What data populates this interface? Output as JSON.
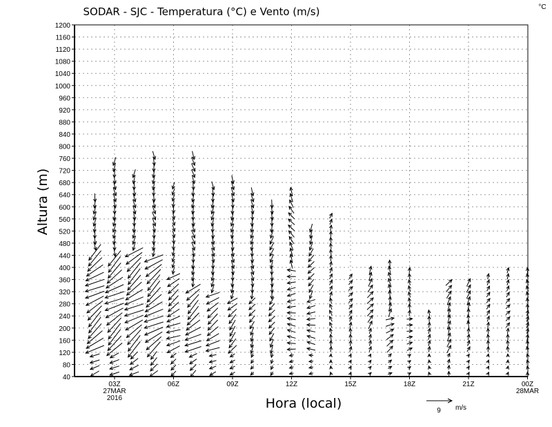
{
  "chart_data": {
    "type": "wind-vector-profile",
    "title": "SODAR - SJC - Temperatura (°C) e Vento (m/s)",
    "units_corner": "°C",
    "xlabel": "Hora (local)",
    "ylabel": "Altura (m)",
    "ylim": [
      40,
      1200
    ],
    "ystep": 40,
    "xlim_hours": [
      1,
      24
    ],
    "x_ticks": [
      {
        "hour": 3,
        "label": "03Z",
        "sub1": "27MAR",
        "sub2": "2016"
      },
      {
        "hour": 6,
        "label": "06Z"
      },
      {
        "hour": 9,
        "label": "09Z"
      },
      {
        "hour": 12,
        "label": "12Z"
      },
      {
        "hour": 15,
        "label": "15Z"
      },
      {
        "hour": 18,
        "label": "18Z"
      },
      {
        "hour": 21,
        "label": "21Z"
      },
      {
        "hour": 24,
        "label": "00Z",
        "sub1": "28MAR"
      }
    ],
    "reference_vector": {
      "speed": 9,
      "label": "9",
      "units": "m/s"
    },
    "level_step_m": 20,
    "profiles": [
      {
        "hour": 2,
        "top": 640,
        "low_dir": 215,
        "low_speed": 7,
        "high_dir": 270,
        "high_speed": 3,
        "transition": 460
      },
      {
        "hour": 3,
        "top": 750,
        "low_dir": 215,
        "low_speed": 7,
        "high_dir": 270,
        "high_speed": 3,
        "transition": 440
      },
      {
        "hour": 4,
        "top": 720,
        "low_dir": 215,
        "low_speed": 7,
        "high_dir": 270,
        "high_speed": 3,
        "transition": 460
      },
      {
        "hour": 5,
        "top": 780,
        "low_dir": 215,
        "low_speed": 7,
        "high_dir": 275,
        "high_speed": 3,
        "transition": 440
      },
      {
        "hour": 6,
        "top": 680,
        "low_dir": 210,
        "low_speed": 5,
        "high_dir": 270,
        "high_speed": 2.5,
        "transition": 380
      },
      {
        "hour": 7,
        "top": 780,
        "low_dir": 215,
        "low_speed": 6,
        "high_dir": 275,
        "high_speed": 3,
        "transition": 340
      },
      {
        "hour": 8,
        "top": 680,
        "low_dir": 210,
        "low_speed": 5,
        "high_dir": 270,
        "high_speed": 3,
        "transition": 320
      },
      {
        "hour": 9,
        "top": 700,
        "low_dir": 225,
        "low_speed": 4,
        "high_dir": 270,
        "high_speed": 3,
        "transition": 300
      },
      {
        "hour": 10,
        "top": 660,
        "low_dir": 240,
        "low_speed": 3,
        "high_dir": 270,
        "high_speed": 3,
        "transition": 300
      },
      {
        "hour": 11,
        "top": 620,
        "low_dir": 240,
        "low_speed": 3,
        "high_dir": 260,
        "high_speed": 3,
        "transition": 300
      },
      {
        "hour": 12,
        "top": 660,
        "low_dir": 180,
        "low_speed": 3,
        "high_dir": 120,
        "high_speed": 3,
        "transition": 400
      },
      {
        "hour": 13,
        "top": 540,
        "low_dir": 180,
        "low_speed": 3,
        "high_dir": 240,
        "high_speed": 3,
        "transition": 300
      },
      {
        "hour": 14,
        "top": 570,
        "low_dir": 100,
        "low_speed": 2,
        "high_dir": 80,
        "high_speed": 2,
        "transition": 300
      },
      {
        "hour": 15,
        "top": 370,
        "low_dir": 80,
        "low_speed": 2,
        "high_dir": 60,
        "high_speed": 2,
        "transition": 200
      },
      {
        "hour": 16,
        "top": 400,
        "low_dir": 60,
        "low_speed": 2,
        "high_dir": 60,
        "high_speed": 3,
        "transition": 200
      },
      {
        "hour": 17,
        "top": 420,
        "low_dir": 30,
        "low_speed": 3,
        "high_dir": 90,
        "high_speed": 3,
        "transition": 250
      },
      {
        "hour": 18,
        "top": 390,
        "low_dir": 20,
        "low_speed": 2,
        "high_dir": 90,
        "high_speed": 2,
        "transition": 250
      },
      {
        "hour": 19,
        "top": 260,
        "low_dir": 90,
        "low_speed": 2,
        "high_dir": 90,
        "high_speed": 2,
        "transition": 200
      },
      {
        "hour": 20,
        "top": 360,
        "low_dir": 80,
        "low_speed": 3,
        "high_dir": 60,
        "high_speed": 3,
        "transition": 200
      },
      {
        "hour": 21,
        "top": 360,
        "low_dir": 70,
        "low_speed": 2,
        "high_dir": 80,
        "high_speed": 3,
        "transition": 200
      },
      {
        "hour": 22,
        "top": 370,
        "low_dir": 80,
        "low_speed": 2,
        "high_dir": 70,
        "high_speed": 2,
        "transition": 200
      },
      {
        "hour": 23,
        "top": 400,
        "low_dir": 80,
        "low_speed": 2,
        "high_dir": 60,
        "high_speed": 2,
        "transition": 200
      },
      {
        "hour": 24,
        "top": 390,
        "low_dir": 90,
        "low_speed": 2,
        "high_dir": 90,
        "high_speed": 2,
        "transition": 200
      }
    ]
  }
}
